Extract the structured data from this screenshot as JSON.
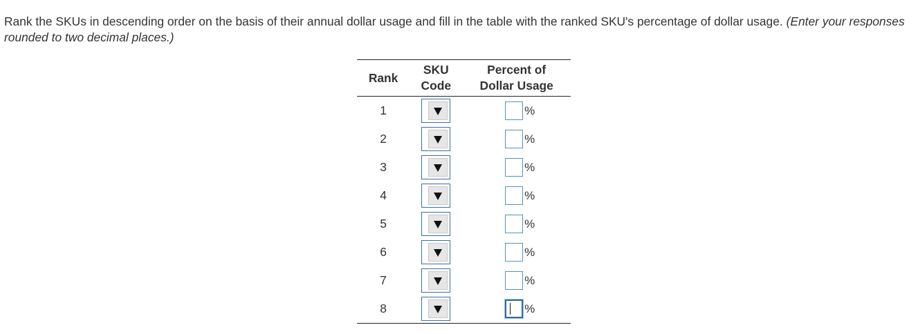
{
  "instructions": {
    "main": "Rank the SKUs in descending order on the basis of their annual dollar usage and fill in the table with the ranked SKU's percentage of dollar usage.",
    "note": "(Enter your responses rounded to two decimal places.)"
  },
  "table": {
    "headers": {
      "rank": "Rank",
      "sku_line1": "SKU",
      "sku_line2": "Code",
      "pct_line1": "Percent of",
      "pct_line2": "Dollar Usage"
    },
    "percent_symbol": "%",
    "rows": [
      {
        "rank": "1",
        "sku_value": "",
        "pct_value": ""
      },
      {
        "rank": "2",
        "sku_value": "",
        "pct_value": ""
      },
      {
        "rank": "3",
        "sku_value": "",
        "pct_value": ""
      },
      {
        "rank": "4",
        "sku_value": "",
        "pct_value": ""
      },
      {
        "rank": "5",
        "sku_value": "",
        "pct_value": ""
      },
      {
        "rank": "6",
        "sku_value": "",
        "pct_value": ""
      },
      {
        "rank": "7",
        "sku_value": "",
        "pct_value": ""
      },
      {
        "rank": "8",
        "sku_value": "",
        "pct_value": ""
      }
    ],
    "focused_row": 7
  },
  "icons": {
    "dropdown": "dropdown-arrow-icon"
  },
  "colors": {
    "input_border": "#5b8fb9",
    "select_border": "#3a6ea5",
    "text": "#333333"
  }
}
